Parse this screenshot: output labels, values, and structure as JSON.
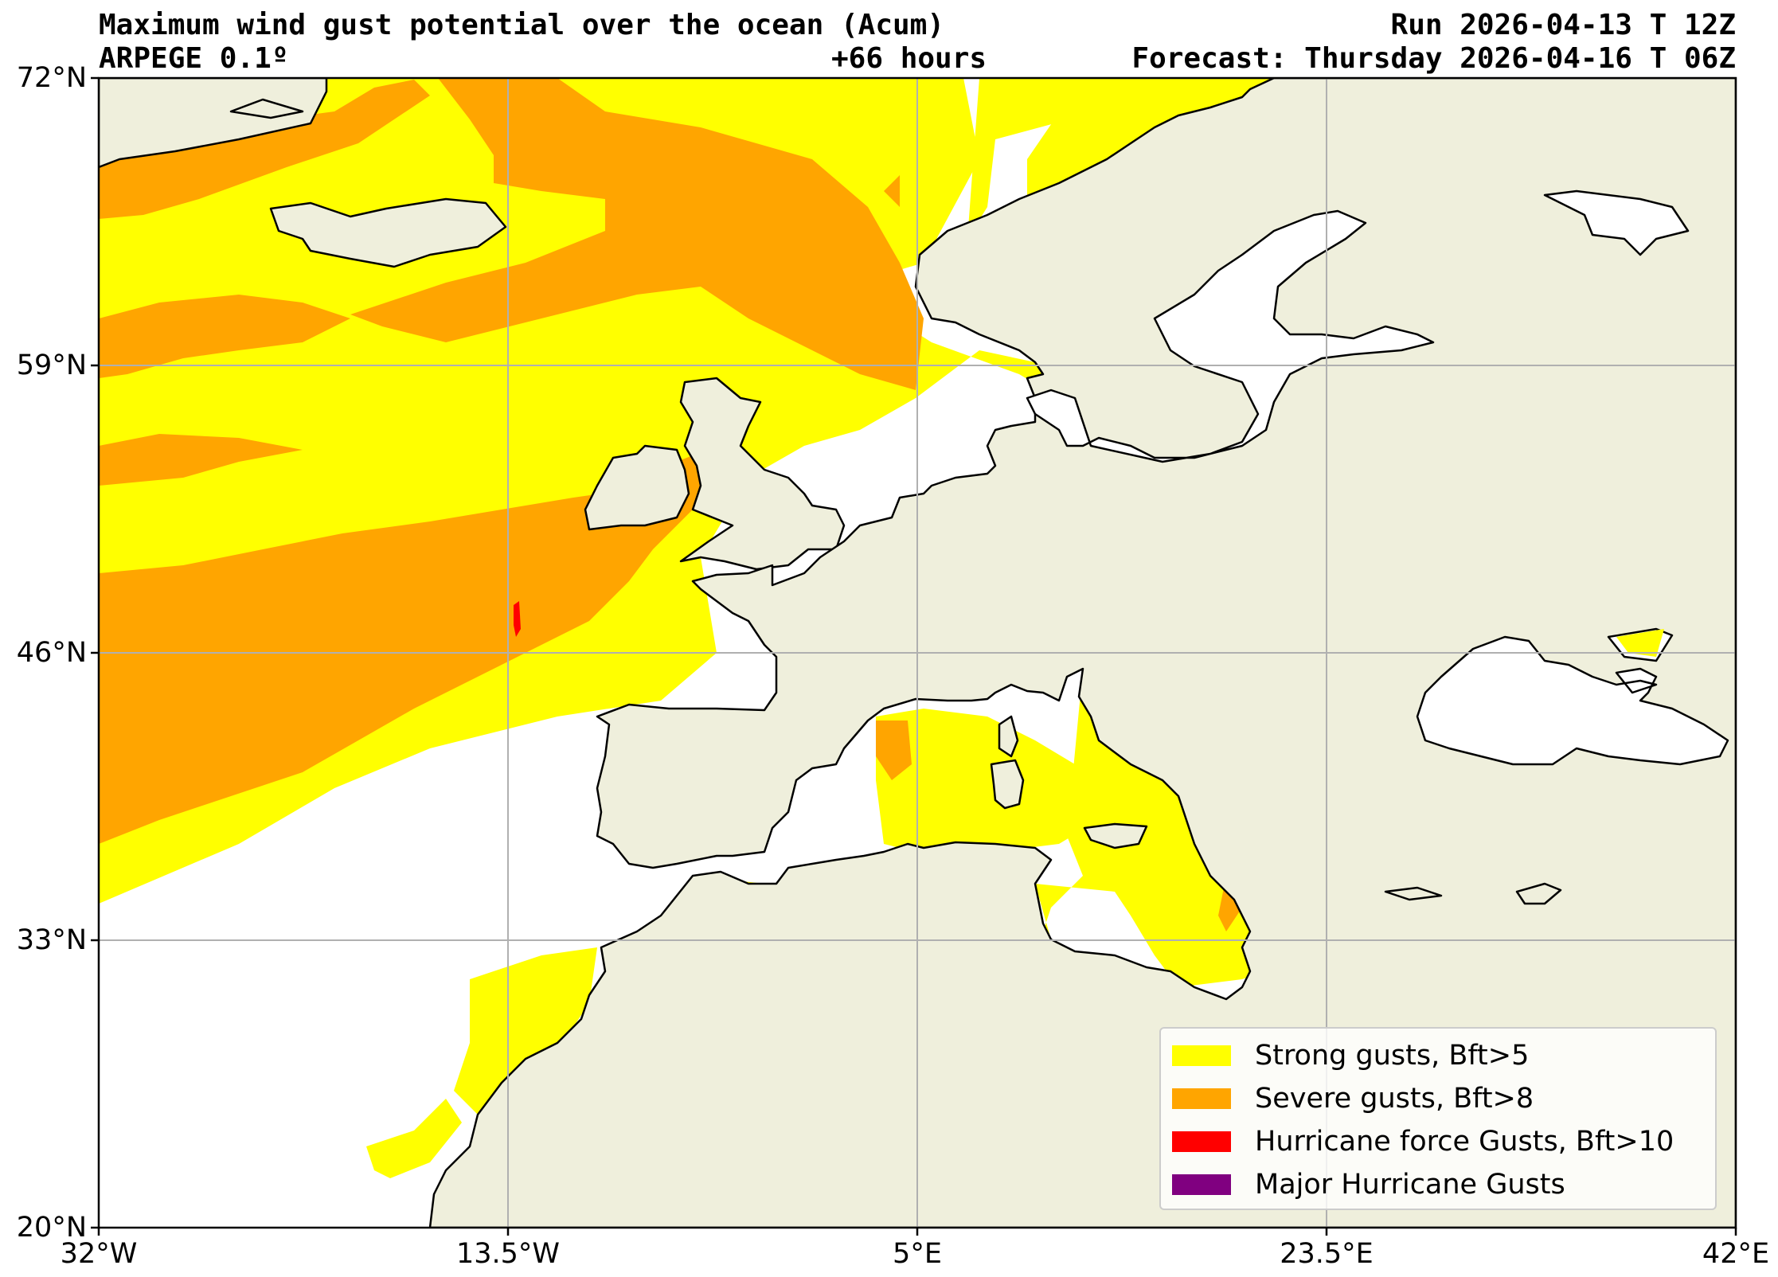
{
  "header": {
    "title": "Maximum wind gust potential over the ocean (Acum)",
    "model": "ARPEGE 0.1º",
    "run": "Run 2026-04-13 T 12Z",
    "lead": "+66 hours",
    "forecast": "Forecast: Thursday 2026-04-16 T 06Z"
  },
  "axes": {
    "lat_labels": [
      "72°N",
      "59°N",
      "46°N",
      "33°N",
      "20°N"
    ],
    "lon_labels": [
      "32°W",
      "13.5°W",
      "5°E",
      "23.5°E",
      "42°E"
    ]
  },
  "legend": {
    "items": [
      {
        "label": "Strong gusts, Bft>5",
        "color": "#ffff00"
      },
      {
        "label": "Severe gusts, Bft>8",
        "color": "#ffa500"
      },
      {
        "label": "Hurricane force Gusts, Bft>10",
        "color": "#ff0000"
      },
      {
        "label": "Major Hurricane Gusts",
        "color": "#800080"
      }
    ]
  },
  "colors": {
    "land": "#efefdc",
    "sea": "#ffffff",
    "grid": "#b0b0b0",
    "coast": "#000000"
  }
}
